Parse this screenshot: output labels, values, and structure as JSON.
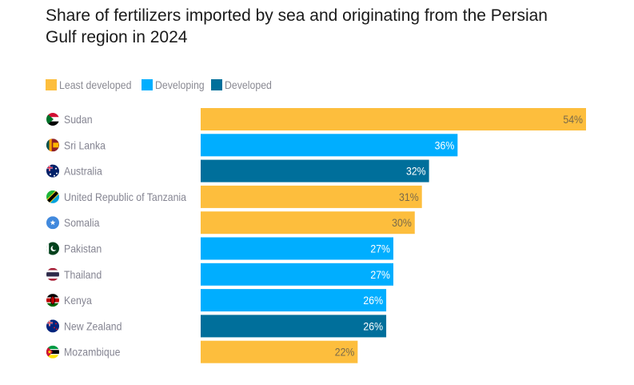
{
  "chart_data": {
    "type": "bar",
    "orientation": "horizontal",
    "title": "Share of fertilizers imported by sea and originating from the Persian Gulf region in 2024",
    "xlabel": "",
    "ylabel": "",
    "xlim": [
      0,
      54
    ],
    "grid": false,
    "legend_position": "top-left",
    "value_format": "{v}%",
    "legend": [
      {
        "key": "least",
        "label": "Least developed",
        "color": "#FDBE3D"
      },
      {
        "key": "developing",
        "label": "Developing",
        "color": "#00AEFF"
      },
      {
        "key": "developed",
        "label": "Developed",
        "color": "#006F9B"
      }
    ],
    "categories": [
      "Sudan",
      "Sri Lanka",
      "Australia",
      "United Republic of Tanzania",
      "Somalia",
      "Pakistan",
      "Thailand",
      "Kenya",
      "New Zealand",
      "Mozambique"
    ],
    "values": [
      54,
      36,
      32,
      31,
      30,
      27,
      27,
      26,
      26,
      22
    ],
    "value_labels": [
      "54%",
      "36%",
      "32%",
      "31%",
      "30%",
      "27%",
      "27%",
      "26%",
      "26%",
      "22%"
    ],
    "groups": [
      "least",
      "developing",
      "developed",
      "least",
      "least",
      "developing",
      "developing",
      "developing",
      "developed",
      "least"
    ],
    "flag_icons": [
      "flag-sudan-icon",
      "flag-sri-lanka-icon",
      "flag-australia-icon",
      "flag-tanzania-icon",
      "flag-somalia-icon",
      "flag-pakistan-icon",
      "flag-thailand-icon",
      "flag-kenya-icon",
      "flag-new-zealand-icon",
      "flag-mozambique-icon"
    ],
    "label_colors": {
      "least": "#7a6a4a",
      "developing": "#ffffff",
      "developed": "#ffffff"
    }
  }
}
